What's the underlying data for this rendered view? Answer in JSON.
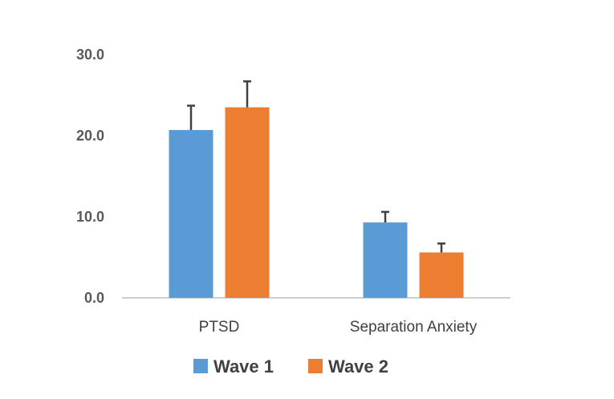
{
  "chart_data": {
    "type": "bar",
    "title": "",
    "xlabel": "",
    "ylabel": "",
    "categories": [
      "PTSD",
      "Separation Anxiety"
    ],
    "series": [
      {
        "name": "Wave 1",
        "color": "#5B9BD5",
        "values": [
          20.7,
          9.3
        ],
        "error": [
          3.0,
          1.3
        ]
      },
      {
        "name": "Wave 2",
        "color": "#ED7D31",
        "values": [
          23.5,
          5.6
        ],
        "error": [
          3.2,
          1.1
        ]
      }
    ],
    "ylim": [
      0,
      30
    ],
    "yticks": [
      "0.0",
      "10.0",
      "20.0",
      "30.0"
    ],
    "grid": false,
    "legend_position": "bottom",
    "error_bar_color": "#404040",
    "axis_color": "#BFBFBF"
  }
}
